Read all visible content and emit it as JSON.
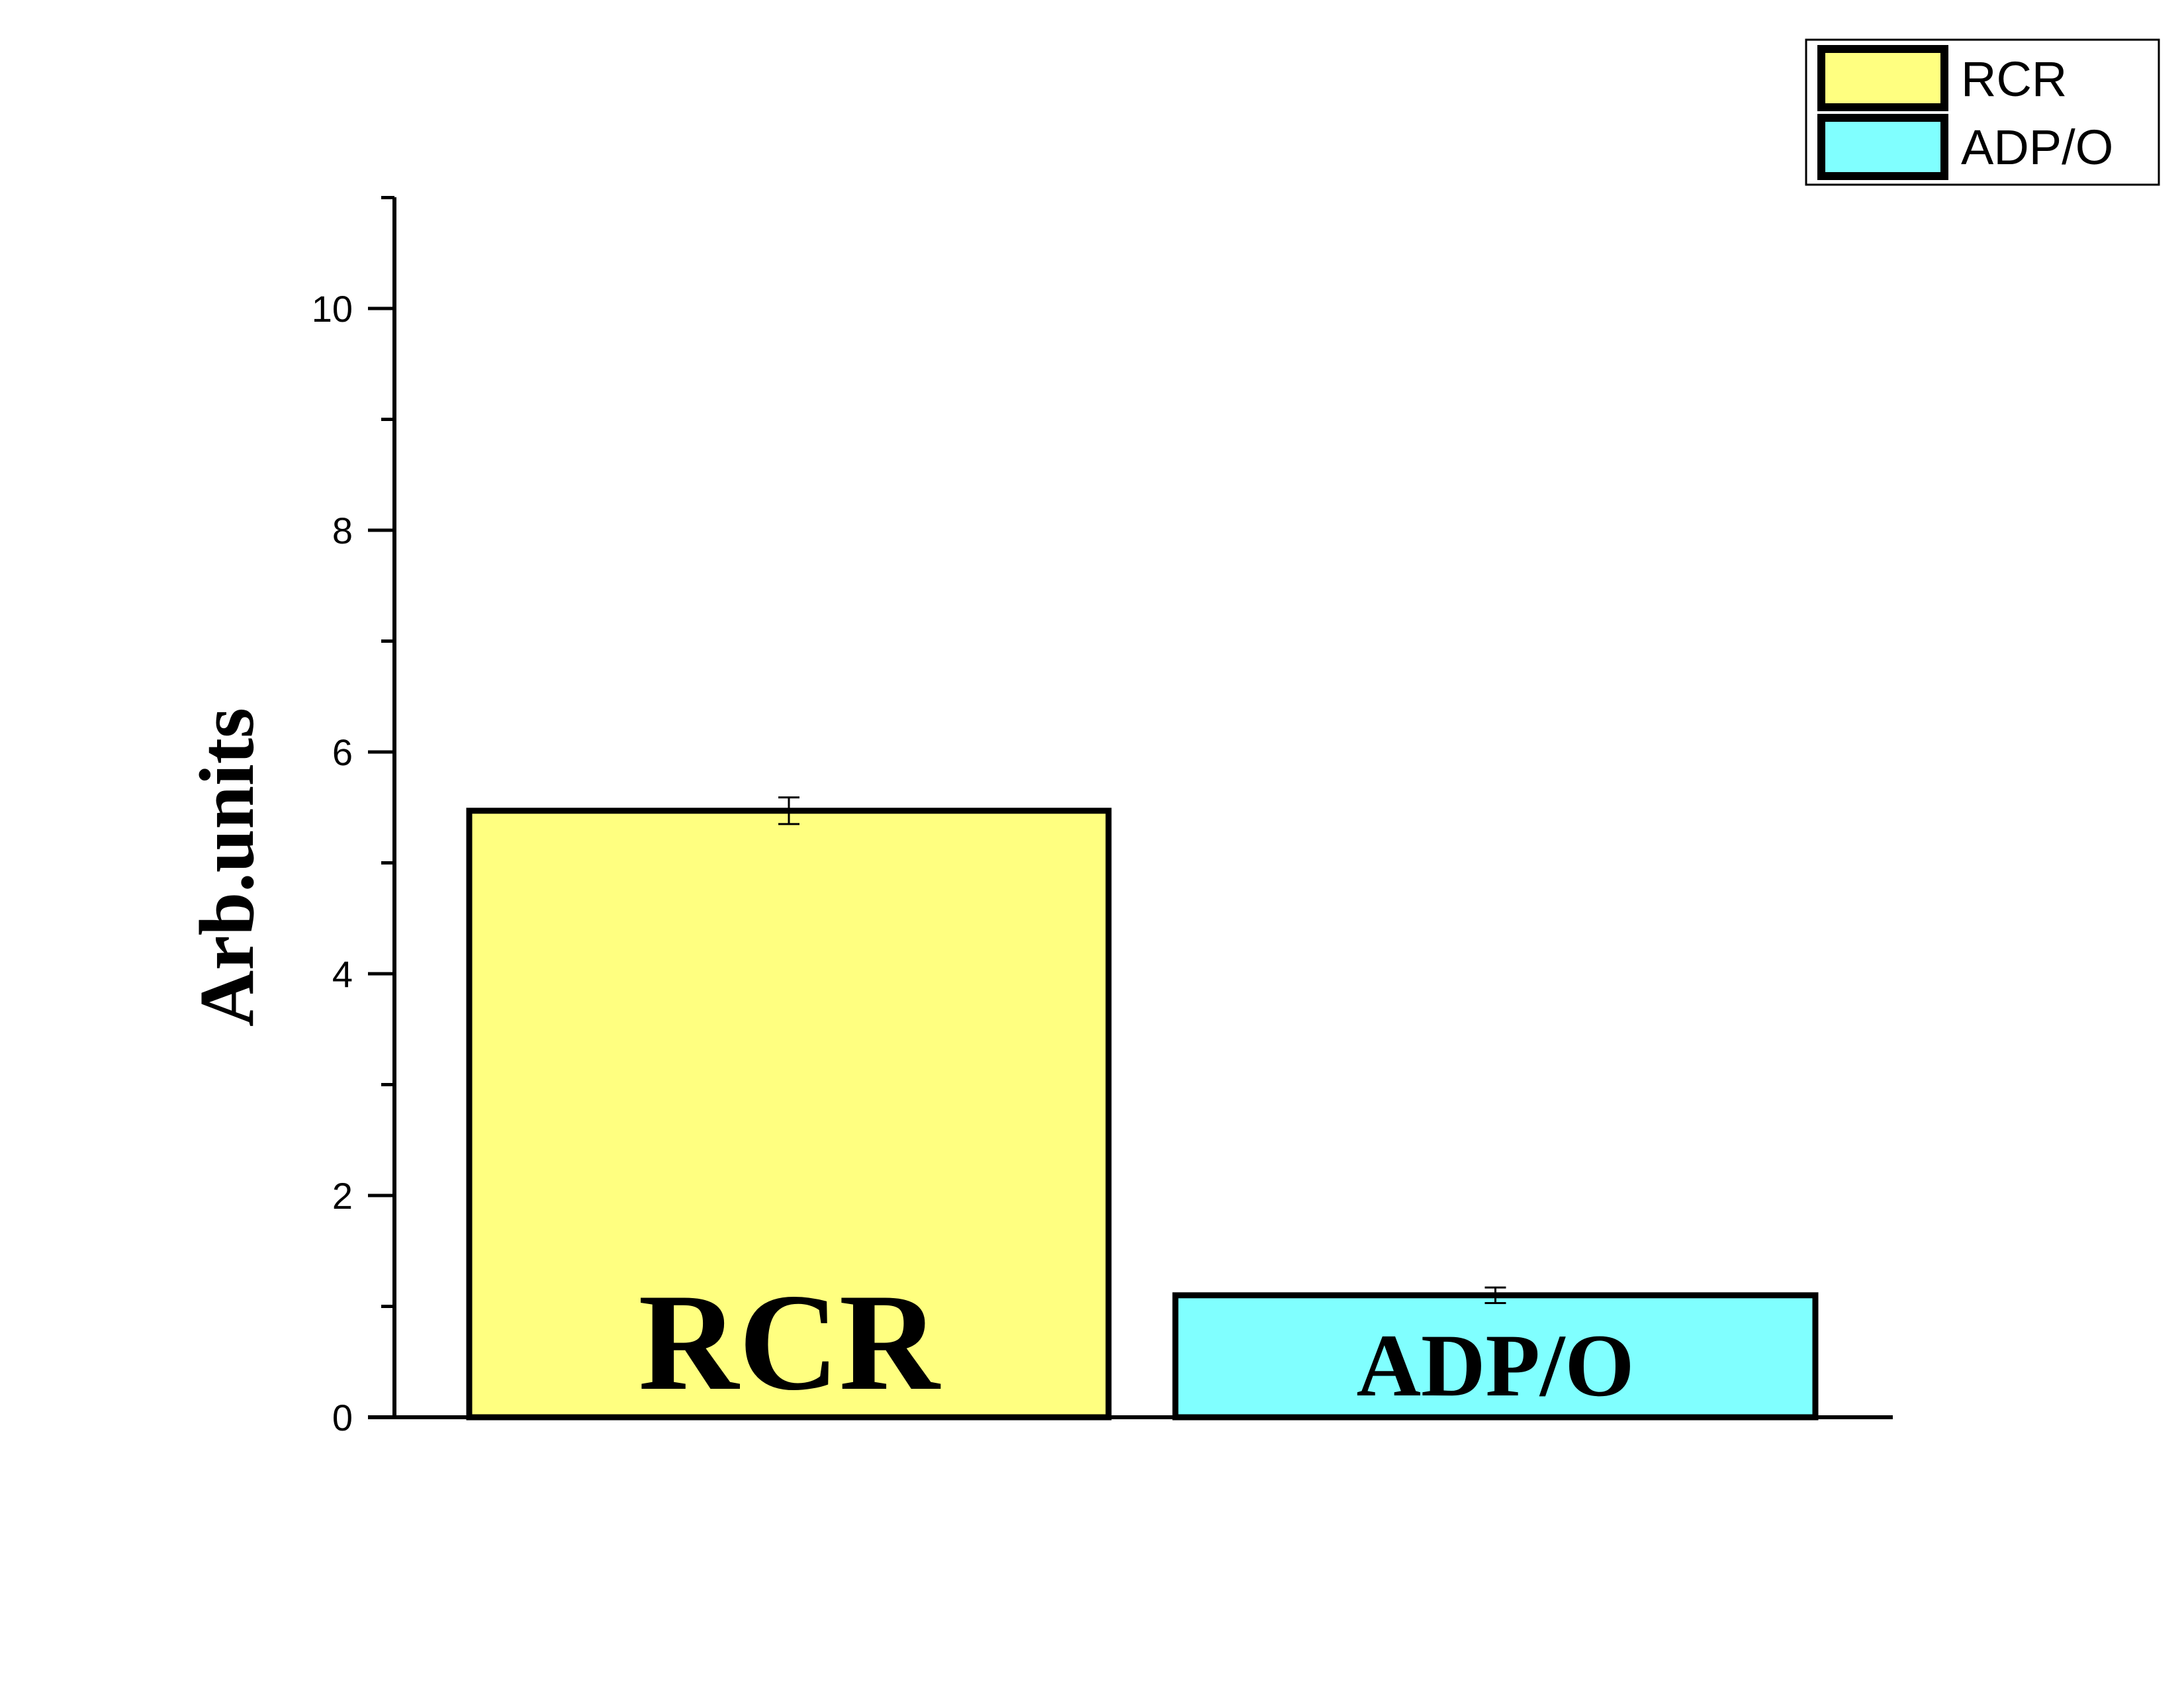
{
  "chart_data": {
    "type": "bar",
    "categories": [
      "RCR",
      "ADP/O"
    ],
    "values": [
      5.47,
      1.1
    ],
    "errors": [
      0.12,
      0.07
    ],
    "bar_labels": [
      "RCR",
      "ADP/O"
    ],
    "colors": [
      "#ffff80",
      "#80ffff"
    ],
    "ylabel": "Arb.units",
    "ylim": [
      0,
      11
    ],
    "yticks": [
      0,
      2,
      4,
      6,
      8,
      10
    ],
    "yticks_minor": [
      1,
      3,
      5,
      7,
      9,
      11
    ],
    "legend": {
      "position": "top-right",
      "entries": [
        {
          "label": "RCR",
          "color": "#ffff80"
        },
        {
          "label": "ADP/O",
          "color": "#80ffff"
        }
      ]
    },
    "grid": false
  }
}
